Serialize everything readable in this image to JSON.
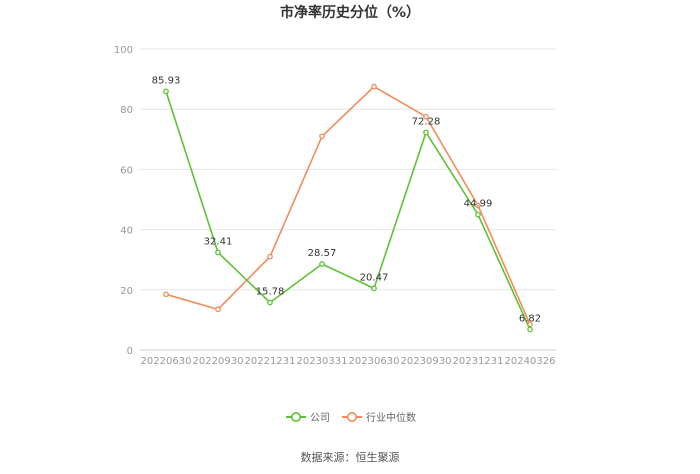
{
  "chart_data": {
    "type": "line",
    "title": "市净率历史分位（%）",
    "categories": [
      "20220630",
      "20220930",
      "20221231",
      "20230331",
      "20230630",
      "20230930",
      "20231231",
      "20240326"
    ],
    "series": [
      {
        "name": "公司",
        "color": "#5cc232",
        "values": [
          85.93,
          32.41,
          15.78,
          28.57,
          20.47,
          72.28,
          44.99,
          6.82
        ],
        "labels_visible": true
      },
      {
        "name": "行业中位数",
        "color": "#f28b5b",
        "values": [
          18.5,
          13.5,
          31.0,
          71.0,
          87.5,
          77.5,
          48.0,
          8.5
        ],
        "labels_visible": false
      }
    ],
    "ylim": [
      0,
      100
    ],
    "yticks": [
      0,
      20,
      40,
      60,
      80,
      100
    ],
    "grid": true,
    "legend": "bottom-center",
    "source": "数据来源：恒生聚源"
  }
}
